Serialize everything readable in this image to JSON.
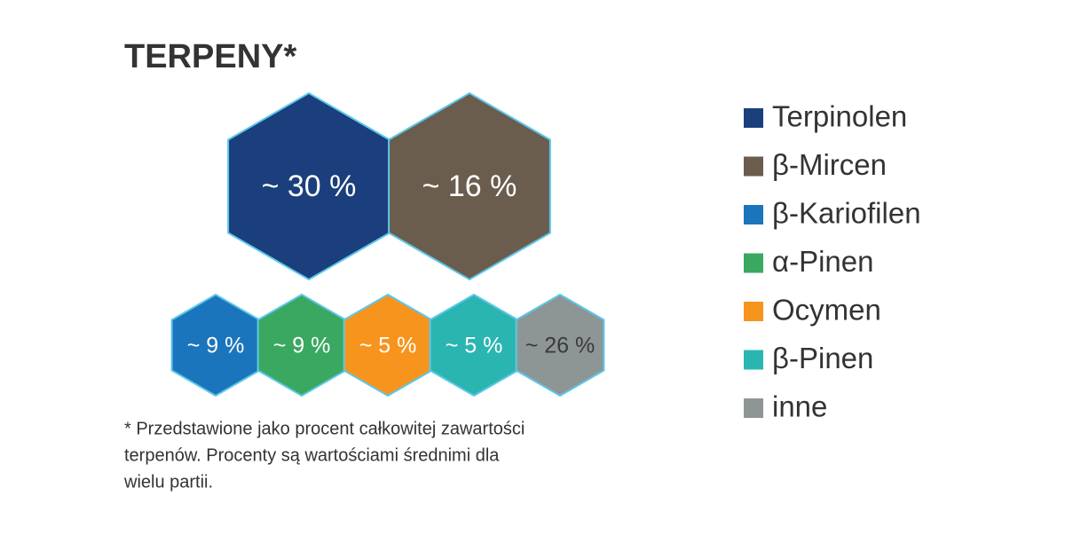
{
  "chart_data": {
    "type": "hexagon",
    "title": "TERPENY*",
    "categories": [
      "Terpinolen",
      "β-Mircen",
      "β-Kariofilen",
      "α-Pinen",
      "Ocymen",
      "β-Pinen",
      "inne"
    ],
    "values": [
      30,
      16,
      9,
      9,
      5,
      5,
      26
    ],
    "value_labels": [
      "~ 30 %",
      "~ 16 %",
      "~ 9 %",
      "~ 9 %",
      "~ 5 %",
      "~ 5 %",
      "~ 26 %"
    ],
    "colors": [
      "#1a3f7c",
      "#6b5d4e",
      "#1b75bc",
      "#3aa860",
      "#f7941d",
      "#2bb5b0",
      "#8e9695"
    ],
    "label_colors": [
      "#ffffff",
      "#ffffff",
      "#ffffff",
      "#ffffff",
      "#ffffff",
      "#ffffff",
      "#3a3a3a"
    ],
    "footnote": [
      "* Przedstawione jako procent całkowitej zawartości",
      "terpenów. Procenty są wartościami średnimi dla",
      "wielu partii."
    ]
  }
}
